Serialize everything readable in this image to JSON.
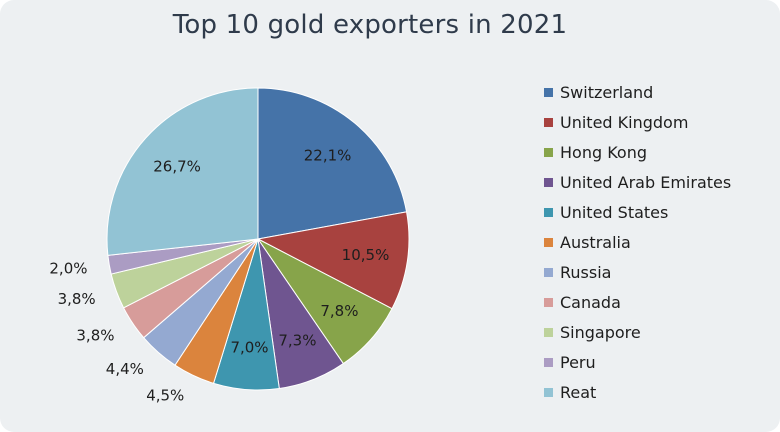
{
  "chart_data": {
    "type": "pie",
    "title": "Top 10 gold exporters in 2021",
    "slices": [
      {
        "label": "Switzerland",
        "value": 22.1,
        "display": "22,1%",
        "color": "#4573a8"
      },
      {
        "label": "United Kingdom",
        "value": 10.5,
        "display": "10,5%",
        "color": "#a8423f"
      },
      {
        "label": "Hong Kong",
        "value": 7.8,
        "display": "7,8%",
        "color": "#87a44a"
      },
      {
        "label": "United Arab Emirates",
        "value": 7.3,
        "display": "7,3%",
        "color": "#6f5590"
      },
      {
        "label": "United States",
        "value": 7.0,
        "display": "7,0%",
        "color": "#3e96af"
      },
      {
        "label": "Australia",
        "value": 4.5,
        "display": "4,5%",
        "color": "#db843d"
      },
      {
        "label": "Russia",
        "value": 4.4,
        "display": "4,4%",
        "color": "#94a9d1"
      },
      {
        "label": "Canada",
        "value": 3.8,
        "display": "3,8%",
        "color": "#d79c9a"
      },
      {
        "label": "Singapore",
        "value": 3.8,
        "display": "3,8%",
        "color": "#bdd29b"
      },
      {
        "label": "Peru",
        "value": 2.0,
        "display": "2,0%",
        "color": "#ab9cc3"
      },
      {
        "label": "Reat",
        "value": 26.7,
        "display": "26,7%",
        "color": "#92c3d4"
      }
    ],
    "legend_position": "right"
  }
}
